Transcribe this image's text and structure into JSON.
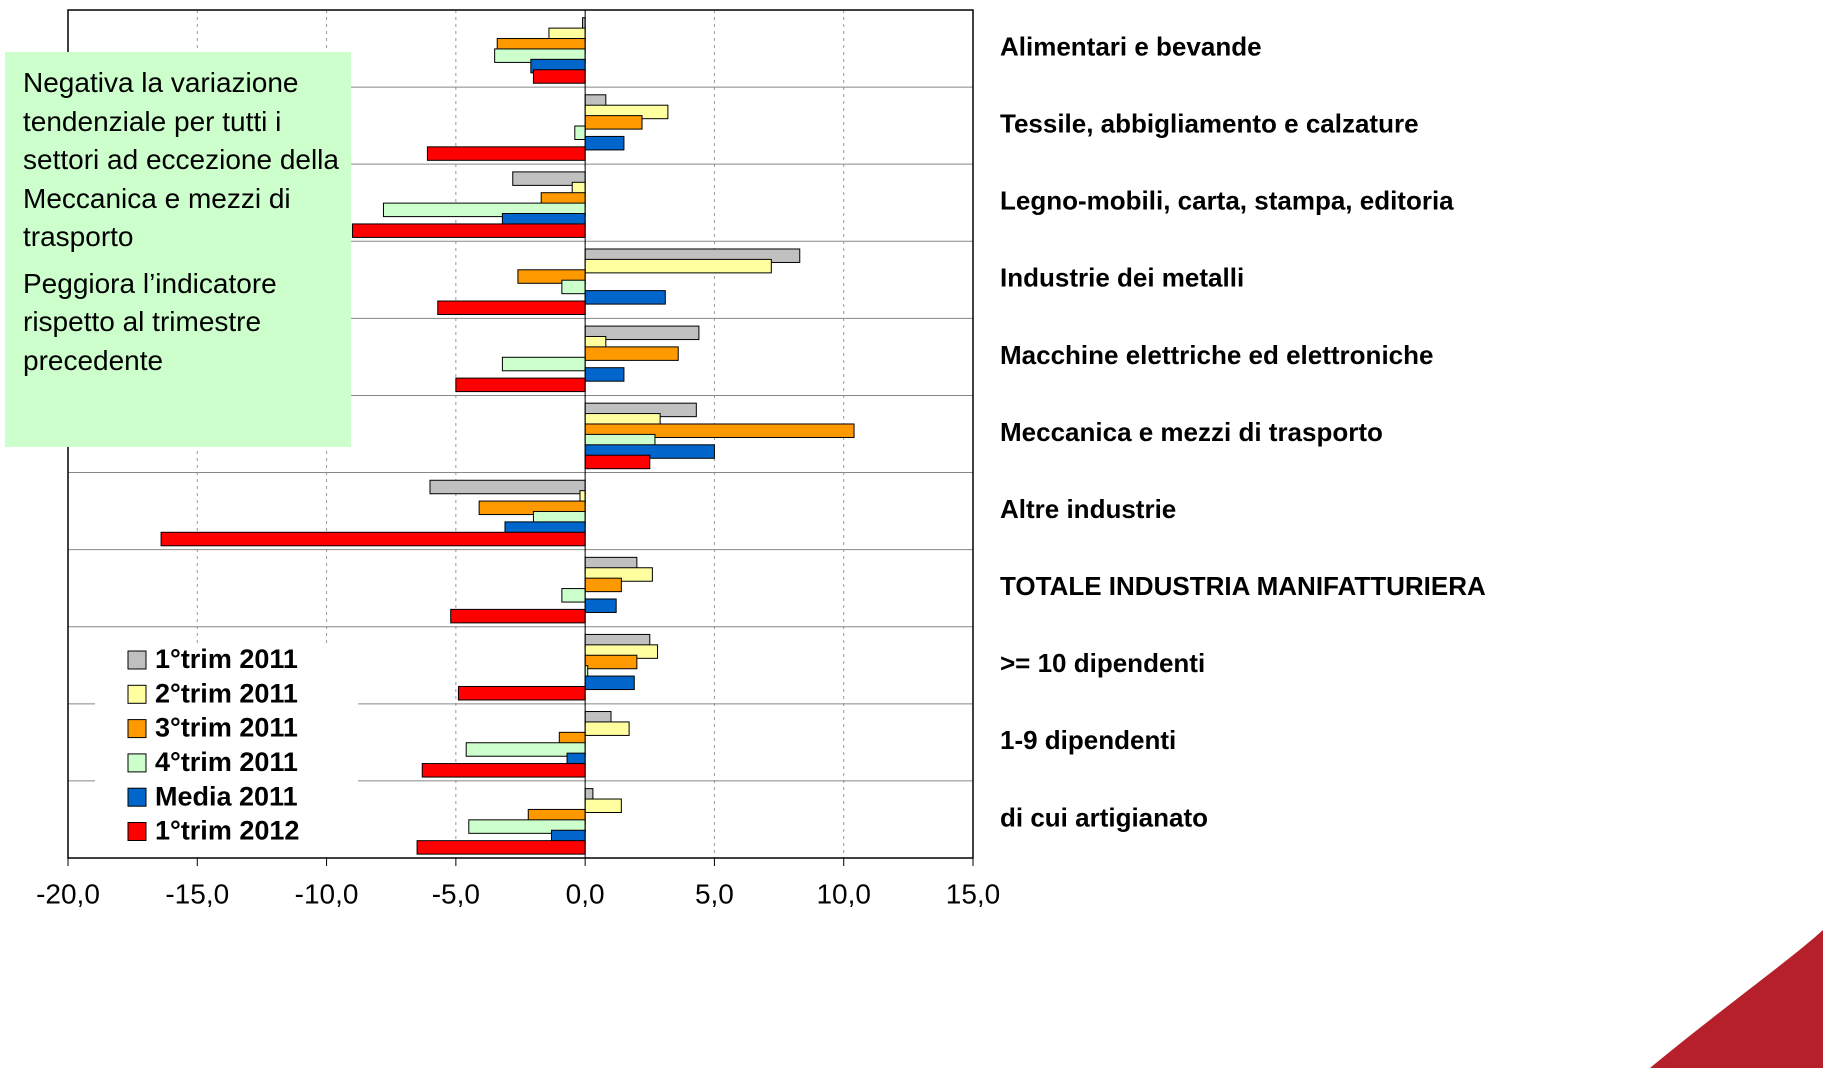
{
  "chart_data": {
    "type": "bar",
    "orientation": "horizontal",
    "categories": [
      "Alimentari e bevande",
      "Tessile, abbigliamento e calzature",
      "Legno-mobili, carta, stampa, editoria",
      "Industrie dei metalli",
      "Macchine elettriche ed elettroniche",
      "Meccanica e mezzi di trasporto",
      "Altre industrie",
      "TOTALE INDUSTRIA MANIFATTURIERA",
      ">= 10 dipendenti",
      "1-9 dipendenti",
      "di cui artigianato"
    ],
    "series": [
      {
        "name": "1°trim 2011",
        "color": "#c0c0c0",
        "values": [
          -0.1,
          0.8,
          -2.8,
          8.3,
          4.4,
          4.3,
          -6.0,
          2.0,
          2.5,
          1.0,
          0.3
        ]
      },
      {
        "name": "2°trim 2011",
        "color": "#ffffa0",
        "values": [
          -1.4,
          3.2,
          -0.5,
          7.2,
          0.8,
          2.9,
          -0.2,
          2.6,
          2.8,
          1.7,
          1.4
        ]
      },
      {
        "name": "3°trim 2011",
        "color": "#ff9900",
        "values": [
          -3.4,
          2.2,
          -1.7,
          -2.6,
          3.6,
          10.4,
          -4.1,
          1.4,
          2.0,
          -1.0,
          -2.2
        ]
      },
      {
        "name": "4°trim 2011",
        "color": "#ccffcc",
        "values": [
          -3.5,
          -0.4,
          -7.8,
          -0.9,
          -3.2,
          2.7,
          -2.0,
          -0.9,
          0.1,
          -4.6,
          -4.5
        ]
      },
      {
        "name": "Media 2011",
        "color": "#0066cc",
        "values": [
          -2.1,
          1.5,
          -3.2,
          3.1,
          1.5,
          5.0,
          -3.1,
          1.2,
          1.9,
          -0.7,
          -1.3
        ]
      },
      {
        "name": "1°trim 2012",
        "color": "#ff0000",
        "values": [
          -2.0,
          -6.1,
          -9.0,
          -5.7,
          -5.0,
          2.5,
          -16.4,
          -5.2,
          -4.9,
          -6.3,
          -6.5
        ]
      }
    ],
    "xlim": [
      -20,
      15
    ],
    "xticks": [
      {
        "value": -20,
        "label": "-20,0"
      },
      {
        "value": -15,
        "label": "-15,0"
      },
      {
        "value": -10,
        "label": "-10,0"
      },
      {
        "value": -5,
        "label": "-5,0"
      },
      {
        "value": 0,
        "label": "0,0"
      },
      {
        "value": 5,
        "label": "5,0"
      },
      {
        "value": 10,
        "label": "10,0"
      },
      {
        "value": 15,
        "label": "15,0"
      }
    ],
    "grid": true,
    "legend": "lower left",
    "annotations": [
      "Negativa la variazione tendenziale per tutti i settori ad eccezione della Meccanica e mezzi di trasporto",
      "Peggiora l’indicatore rispetto al trimestre precedente"
    ]
  }
}
